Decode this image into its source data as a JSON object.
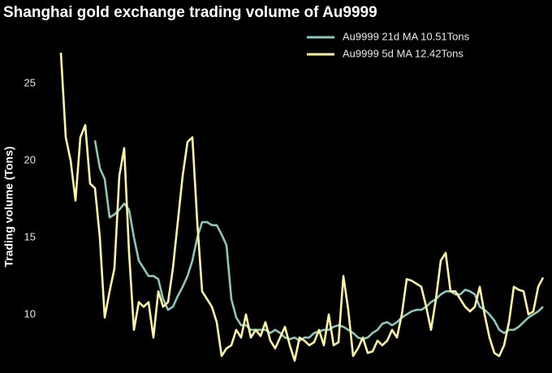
{
  "chart_data": {
    "type": "line",
    "title": "Shanghai gold exchange trading volume of Au9999",
    "y_label": "Trading volume (Tons)",
    "categories": [
      null,
      null,
      null,
      null,
      null,
      null,
      null,
      null,
      null,
      null,
      null,
      null,
      null,
      null,
      null,
      null,
      null,
      null,
      null,
      null,
      null,
      null,
      null,
      null,
      null,
      null,
      null,
      null,
      null,
      null,
      null,
      null,
      null,
      null,
      null,
      null,
      null,
      null,
      null,
      null,
      null,
      null,
      null,
      null,
      null,
      null,
      null,
      null,
      null,
      null,
      null,
      null,
      null,
      null,
      null,
      null,
      null,
      null,
      null,
      null,
      null,
      null,
      null,
      null,
      null,
      null,
      null,
      null,
      null,
      null,
      null,
      null,
      null,
      null,
      null,
      null,
      null,
      null,
      null,
      null,
      null,
      null,
      null,
      null,
      null,
      null,
      null,
      null,
      null,
      null,
      null,
      null,
      null,
      null,
      null,
      null,
      null,
      null,
      null,
      null
    ],
    "series": [
      {
        "name": "Au9999 21d MA 10.51Tons",
        "color": "#8cc7bd",
        "values": [
          null,
          null,
          null,
          null,
          null,
          null,
          null,
          21.3,
          19.5,
          18.8,
          16.3,
          16.5,
          16.8,
          17.2,
          16.8,
          15,
          13.5,
          13,
          12.5,
          12.5,
          12.3,
          11,
          10.3,
          10.5,
          11.2,
          11.8,
          12.5,
          13.5,
          15,
          16,
          16,
          15.8,
          15.8,
          15.2,
          14.5,
          11,
          9.8,
          9.3,
          9.3,
          9,
          9,
          9,
          9,
          8.8,
          9,
          8.8,
          8.5,
          8.4,
          8.5,
          8.3,
          8.5,
          8.5,
          8.8,
          8.9,
          9,
          9,
          9.2,
          9.3,
          9.2,
          9,
          8.8,
          8.5,
          8.4,
          8.5,
          8.8,
          9,
          9.4,
          9.5,
          9.3,
          9.5,
          9.8,
          10,
          10.2,
          10.3,
          10.3,
          10.5,
          10.8,
          11,
          11.3,
          11.5,
          11.5,
          11.3,
          11.3,
          11.6,
          11.5,
          11.3,
          10.5,
          10.3,
          10,
          9.6,
          9,
          8.8,
          9,
          9,
          9.2,
          9.5,
          9.8,
          10,
          10.2,
          10.5
        ]
      },
      {
        "name": "Au9999 5d MA 12.42Tons",
        "color": "#fdf4a3",
        "values": [
          27,
          21.5,
          20,
          17.4,
          21.5,
          22.3,
          18.5,
          18.2,
          15,
          9.8,
          11.5,
          13,
          19,
          20.8,
          14,
          9,
          10.8,
          10.5,
          10.8,
          8.5,
          11.5,
          10.5,
          10.8,
          13,
          16,
          19,
          21.2,
          21.5,
          16,
          11.5,
          11,
          10.5,
          9.5,
          7.3,
          7.8,
          8,
          9,
          8.5,
          10,
          8.5,
          9,
          8.6,
          9.5,
          8.3,
          7.8,
          8.5,
          9.2,
          8,
          7,
          8.5,
          8.3,
          8,
          8.2,
          9,
          8,
          10,
          8,
          8.2,
          12.5,
          10.3,
          7.3,
          7.8,
          8.5,
          7.5,
          7.6,
          8.3,
          8,
          8.3,
          9,
          8.5,
          10,
          12.3,
          12.2,
          12,
          11.8,
          10.5,
          9,
          11,
          13.5,
          14,
          11.5,
          11.5,
          11,
          10.5,
          10.2,
          10.5,
          11.8,
          10,
          8.5,
          7.5,
          7.3,
          8,
          9.5,
          11.8,
          11.6,
          11.5,
          10,
          10.2,
          11.8,
          12.4
        ]
      }
    ],
    "ylim": [
      6.2,
      28
    ],
    "yticks": [
      10,
      15,
      20,
      25
    ],
    "grid": false,
    "legend": "upper right"
  }
}
